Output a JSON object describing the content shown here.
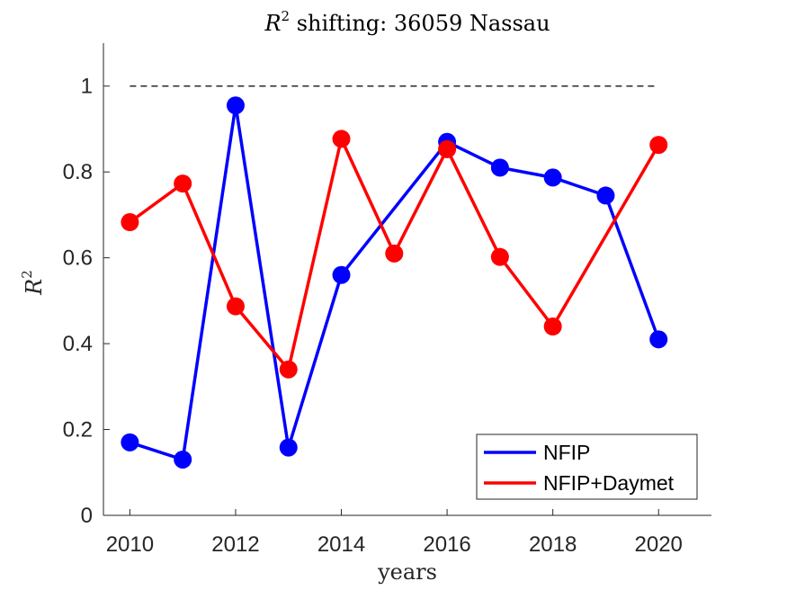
{
  "chart_data": {
    "type": "line",
    "title": {
      "prefix": "R",
      "superscript": "2",
      "suffix": " shifting: 36059 Nassau"
    },
    "xlabel": "years",
    "ylabel": {
      "base": "R",
      "superscript": "2"
    },
    "xlim": [
      2009.5,
      2021
    ],
    "ylim": [
      0,
      1.1
    ],
    "x_ticks": [
      2010,
      2012,
      2014,
      2016,
      2018,
      2020
    ],
    "x_tick_labels": [
      "2010",
      "2012",
      "2014",
      "2016",
      "2018",
      "2020"
    ],
    "y_ticks": [
      0,
      0.2,
      0.4,
      0.6,
      0.8,
      1
    ],
    "y_tick_labels": [
      "0",
      "0.2",
      "0.4",
      "0.6",
      "0.8",
      "1"
    ],
    "x": [
      2010,
      2011,
      2012,
      2013,
      2014,
      2015,
      2016,
      2017,
      2018,
      2019,
      2020
    ],
    "reference_line": {
      "y": 1,
      "x_range": [
        2010,
        2020
      ],
      "style": "dashed",
      "color": "#000000"
    },
    "series": [
      {
        "name": "NFIP",
        "color": "#0000ff",
        "x": [
          2010,
          2011,
          2012,
          2013,
          2014,
          2016,
          2017,
          2018,
          2019,
          2020
        ],
        "values": [
          0.17,
          0.13,
          0.955,
          0.158,
          0.56,
          0.87,
          0.81,
          0.787,
          0.745,
          0.41
        ]
      },
      {
        "name": "NFIP+Daymet",
        "color": "#ff0000",
        "x": [
          2010,
          2011,
          2012,
          2013,
          2014,
          2015,
          2016,
          2017,
          2018,
          2020
        ],
        "values": [
          0.683,
          0.773,
          0.487,
          0.34,
          0.877,
          0.61,
          0.853,
          0.602,
          0.44,
          0.863
        ]
      }
    ],
    "legend": {
      "position": "bottom-right",
      "entries": [
        "NFIP",
        "NFIP+Daymet"
      ]
    }
  }
}
